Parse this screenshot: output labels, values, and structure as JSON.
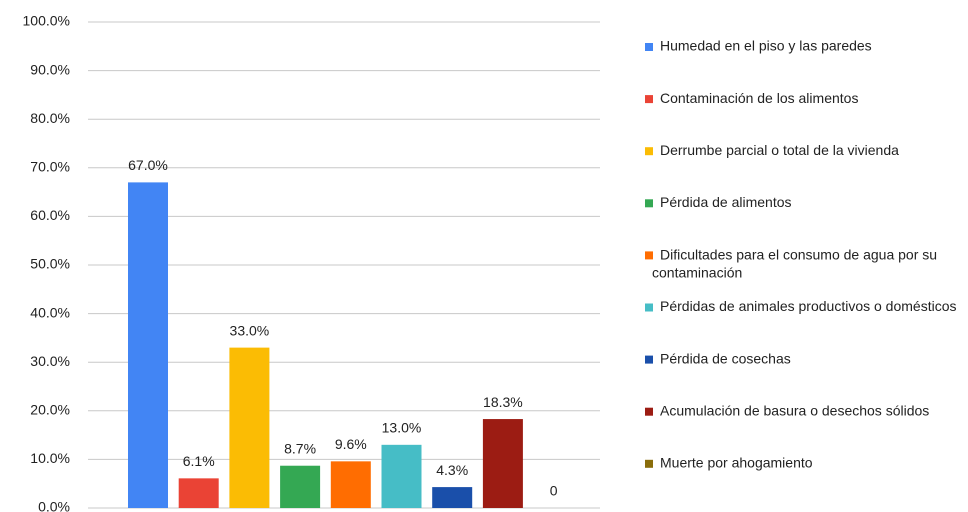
{
  "chart_data": {
    "type": "bar",
    "ylim": [
      0,
      100
    ],
    "yticks": [
      {
        "value": 0,
        "label": "0.0%"
      },
      {
        "value": 10,
        "label": "10.0%"
      },
      {
        "value": 20,
        "label": "20.0%"
      },
      {
        "value": 30,
        "label": "30.0%"
      },
      {
        "value": 40,
        "label": "40.0%"
      },
      {
        "value": 50,
        "label": "50.0%"
      },
      {
        "value": 60,
        "label": "60.0%"
      },
      {
        "value": 70,
        "label": "70.0%"
      },
      {
        "value": 80,
        "label": "80.0%"
      },
      {
        "value": 90,
        "label": "90.0%"
      },
      {
        "value": 100,
        "label": "100.0%"
      }
    ],
    "grid": true,
    "legend": "right",
    "series": [
      {
        "name": "Humedad en el piso y las paredes",
        "color": "#4285f4",
        "values": [
          67
        ],
        "value_labels": [
          "67.0%"
        ]
      },
      {
        "name": "Contaminación de los alimentos",
        "color": "#ea4335",
        "values": [
          6.1
        ],
        "value_labels": [
          "6.1%"
        ]
      },
      {
        "name": "Derrumbe parcial o total de la vivienda",
        "color": "#fbbc04",
        "values": [
          33
        ],
        "value_labels": [
          "33.0%"
        ]
      },
      {
        "name": "Pérdida de alimentos",
        "color": "#34a853",
        "values": [
          8.7
        ],
        "value_labels": [
          "8.7%"
        ]
      },
      {
        "name": "Dificultades para el consumo de agua por su contaminación",
        "color": "#ff6d01",
        "values": [
          9.6
        ],
        "value_labels": [
          "9.6%"
        ]
      },
      {
        "name": "Pérdidas de animales productivos o domésticos",
        "color": "#46bdc6",
        "values": [
          13
        ],
        "value_labels": [
          "13.0%"
        ]
      },
      {
        "name": "Pérdida de cosechas",
        "color": "#1a4faa",
        "values": [
          4.3
        ],
        "value_labels": [
          "4.3%"
        ]
      },
      {
        "name": "Acumulación de basura o desechos sólidos",
        "color": "#9c1c13",
        "values": [
          18.3
        ],
        "value_labels": [
          "18.3%"
        ]
      },
      {
        "name": "Muerte por ahogamiento",
        "color": "#8a6d0b",
        "values": [
          0
        ]
      }
    ]
  }
}
